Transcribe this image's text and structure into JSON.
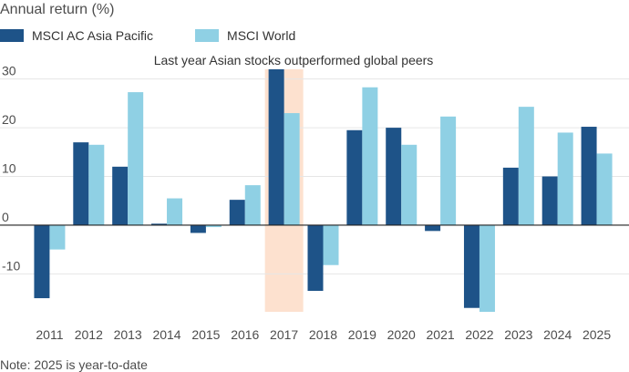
{
  "colors": {
    "asia": "#1e5388",
    "world": "#8fd0e4",
    "highlight": "#fde1cf",
    "grid": "#e6e6e6",
    "zero": "#222222"
  },
  "legend": {
    "items": [
      {
        "label": "MSCI AC Asia Pacific",
        "color": "#1e5388"
      },
      {
        "label": "MSCI World",
        "color": "#8fd0e4"
      }
    ]
  },
  "note": "Note: 2025 is year-to-date",
  "chart_data": {
    "type": "bar",
    "ylabel": "Annual return (%)",
    "annotation": "Last year Asian stocks outperformed global peers",
    "highlight_category": "2017",
    "categories": [
      "2011",
      "2012",
      "2013",
      "2014",
      "2015",
      "2016",
      "2017",
      "2018",
      "2019",
      "2020",
      "2021",
      "2022",
      "2023",
      "2024",
      "2025"
    ],
    "series": [
      {
        "name": "MSCI AC Asia Pacific",
        "values": [
          -15,
          17,
          12,
          0.3,
          -1.6,
          5.2,
          32,
          -13.5,
          19.5,
          20,
          -1.2,
          -17,
          11.8,
          10,
          20.2
        ]
      },
      {
        "name": "MSCI World",
        "values": [
          -5,
          16.5,
          27.3,
          5.5,
          -0.4,
          8.2,
          23,
          -8.2,
          28.3,
          16.5,
          22.3,
          -17.8,
          24.3,
          19,
          14.7
        ]
      }
    ],
    "yticks": [
      30,
      20,
      10,
      0,
      -10
    ],
    "ylim": [
      -17.8,
      32
    ],
    "grid": true
  }
}
